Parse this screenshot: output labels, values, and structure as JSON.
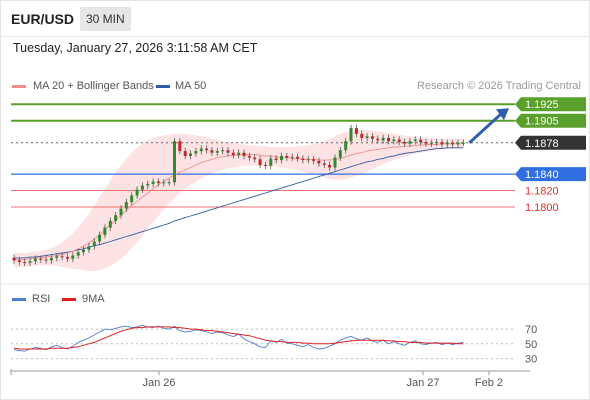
{
  "header": {
    "symbol": "EUR/USD",
    "timeframe": "30 MIN",
    "datetime": "Tuesday, January 27, 2026 3:11:58 AM CET"
  },
  "legend": {
    "items": [
      {
        "label": "MA 20 + Bollinger Bands",
        "color": "#f08c8c"
      },
      {
        "label": "MA 50",
        "color": "#2f5ea8"
      }
    ],
    "credit": "Research © 2026 Trading Central"
  },
  "rsi_legend": {
    "items": [
      {
        "label": "RSI",
        "color": "#4a7fd4"
      },
      {
        "label": "9MA",
        "color": "#e02020"
      }
    ]
  },
  "colors": {
    "green_level": "#5aa02c",
    "blue_level": "#2f6fe0",
    "red_level": "#f07070",
    "current_price": "#333333",
    "candle_up": "#2e8b2e",
    "candle_down": "#c0262c",
    "arrow": "#2f5ea8",
    "band_fill": "#fde3e3"
  },
  "chart_data": [
    {
      "type": "candlestick",
      "title": "EUR/USD",
      "ylim": [
        1.1716,
        1.1935
      ],
      "x_tick_labels": [
        "Jan 26",
        "Jan 27",
        "Feb 2"
      ],
      "levels": [
        {
          "value": 1.1925,
          "label": "1.1925",
          "kind": "resistance"
        },
        {
          "value": 1.1905,
          "label": "1.1905",
          "kind": "resistance"
        },
        {
          "value": 1.1878,
          "label": "1.1878",
          "kind": "current"
        },
        {
          "value": 1.184,
          "label": "1.1840",
          "kind": "pivot"
        },
        {
          "value": 1.182,
          "label": "1.1820",
          "kind": "support"
        },
        {
          "value": 1.18,
          "label": "1.1800",
          "kind": "support"
        }
      ],
      "close": [
        1.1735,
        1.1733,
        1.1732,
        1.1734,
        1.1737,
        1.1736,
        1.1735,
        1.1738,
        1.174,
        1.1739,
        1.1737,
        1.1741,
        1.1745,
        1.1748,
        1.1752,
        1.1758,
        1.1766,
        1.1775,
        1.1783,
        1.179,
        1.1798,
        1.1806,
        1.1814,
        1.1821,
        1.1826,
        1.1828,
        1.1831,
        1.1829,
        1.183,
        1.183,
        1.188,
        1.1868,
        1.1862,
        1.1865,
        1.1868,
        1.1871,
        1.1869,
        1.1866,
        1.1868,
        1.1869,
        1.1866,
        1.1863,
        1.1866,
        1.1862,
        1.186,
        1.1858,
        1.1851,
        1.185,
        1.1859,
        1.1857,
        1.1862,
        1.186,
        1.1861,
        1.1859,
        1.1857,
        1.1858,
        1.1856,
        1.1853,
        1.1851,
        1.1848,
        1.186,
        1.1869,
        1.188,
        1.1896,
        1.1889,
        1.1884,
        1.1886,
        1.1883,
        1.1881,
        1.1884,
        1.188,
        1.1882,
        1.1879,
        1.1877,
        1.188,
        1.1882,
        1.1879,
        1.1877,
        1.1878,
        1.1879,
        1.1876,
        1.1878,
        1.1876,
        1.1878,
        1.1878
      ],
      "ma20": [
        1.1736,
        1.1736,
        1.1736,
        1.1737,
        1.1738,
        1.1738,
        1.1739,
        1.174,
        1.1741,
        1.1742,
        1.1744,
        1.1746,
        1.1749,
        1.1752,
        1.1756,
        1.1761,
        1.1766,
        1.1772,
        1.1778,
        1.1784,
        1.179,
        1.1796,
        1.1802,
        1.1807,
        1.1812,
        1.1817,
        1.1822,
        1.1827,
        1.1831,
        1.1835,
        1.1839,
        1.1842,
        1.1845,
        1.1848,
        1.1851,
        1.1854,
        1.1856,
        1.1858,
        1.186,
        1.1861,
        1.1862,
        1.1863,
        1.1863,
        1.1864,
        1.1864,
        1.1864,
        1.1863,
        1.1862,
        1.1862,
        1.1861,
        1.186,
        1.186,
        1.1859,
        1.1859,
        1.1858,
        1.1858,
        1.1858,
        1.1857,
        1.1857,
        1.1857,
        1.1858,
        1.1859,
        1.1861,
        1.1863,
        1.1865,
        1.1866,
        1.1868,
        1.1869,
        1.187,
        1.1871,
        1.1872,
        1.1873,
        1.1873,
        1.1874,
        1.1874,
        1.1875,
        1.1875,
        1.1876,
        1.1876,
        1.1876,
        1.1877,
        1.1877,
        1.1877,
        1.1877,
        1.1877
      ],
      "bb_upper": [
        1.1745,
        1.1744,
        1.1744,
        1.1745,
        1.1746,
        1.1746,
        1.1748,
        1.175,
        1.1753,
        1.1757,
        1.1762,
        1.1768,
        1.1775,
        1.1783,
        1.1792,
        1.1802,
        1.1812,
        1.1822,
        1.1832,
        1.1842,
        1.1851,
        1.1859,
        1.1866,
        1.1872,
        1.1877,
        1.1881,
        1.1884,
        1.1886,
        1.1887,
        1.1888,
        1.1889,
        1.1889,
        1.1889,
        1.1888,
        1.1887,
        1.1886,
        1.1885,
        1.1883,
        1.1882,
        1.188,
        1.1879,
        1.1878,
        1.1877,
        1.1876,
        1.1875,
        1.1875,
        1.1874,
        1.1874,
        1.1873,
        1.1873,
        1.1873,
        1.1873,
        1.1873,
        1.1874,
        1.1874,
        1.1875,
        1.1876,
        1.1878,
        1.188,
        1.1883,
        1.1886,
        1.1889,
        1.1891,
        1.1893,
        1.1894,
        1.1894,
        1.1894,
        1.1893,
        1.1892,
        1.1891,
        1.189,
        1.1889,
        1.1888,
        1.1887,
        1.1886,
        1.1885,
        1.1885,
        1.1884,
        1.1884,
        1.1883,
        1.1883,
        1.1883,
        1.1883,
        1.1883,
        1.1883
      ],
      "bb_lower": [
        1.1727,
        1.1727,
        1.1727,
        1.1728,
        1.1729,
        1.1729,
        1.1729,
        1.1729,
        1.1728,
        1.1727,
        1.1726,
        1.1725,
        1.1724,
        1.1723,
        1.1722,
        1.1722,
        1.1723,
        1.1725,
        1.1728,
        1.1732,
        1.1737,
        1.1743,
        1.175,
        1.1757,
        1.1765,
        1.1773,
        1.1781,
        1.1789,
        1.1797,
        1.1804,
        1.1811,
        1.1817,
        1.1822,
        1.1827,
        1.1831,
        1.1835,
        1.1838,
        1.1841,
        1.1843,
        1.1845,
        1.1847,
        1.1848,
        1.1849,
        1.185,
        1.185,
        1.185,
        1.185,
        1.185,
        1.185,
        1.1849,
        1.1848,
        1.1847,
        1.1846,
        1.1845,
        1.1843,
        1.1841,
        1.184,
        1.1838,
        1.1836,
        1.1834,
        1.1833,
        1.1833,
        1.1834,
        1.1836,
        1.1838,
        1.184,
        1.1843,
        1.1846,
        1.1849,
        1.1852,
        1.1855,
        1.1857,
        1.1859,
        1.1861,
        1.1863,
        1.1865,
        1.1866,
        1.1867,
        1.1868,
        1.1869,
        1.187,
        1.187,
        1.1871,
        1.1871,
        1.1871
      ],
      "ma50": [
        1.1738,
        1.1738,
        1.1738,
        1.1739,
        1.1739,
        1.174,
        1.1741,
        1.1742,
        1.1743,
        1.1744,
        1.1745,
        1.1746,
        1.1748,
        1.1749,
        1.1751,
        1.1753,
        1.1754,
        1.1756,
        1.1758,
        1.176,
        1.1762,
        1.1764,
        1.1766,
        1.1768,
        1.177,
        1.1772,
        1.1774,
        1.1776,
        1.1778,
        1.178,
        1.1783,
        1.1785,
        1.1787,
        1.1789,
        1.1791,
        1.1793,
        1.1795,
        1.1797,
        1.1799,
        1.1801,
        1.1803,
        1.1805,
        1.1807,
        1.1809,
        1.1811,
        1.1813,
        1.1815,
        1.1817,
        1.1819,
        1.1821,
        1.1823,
        1.1825,
        1.1827,
        1.1829,
        1.1831,
        1.1833,
        1.1835,
        1.1837,
        1.1839,
        1.1841,
        1.1843,
        1.1845,
        1.1847,
        1.1849,
        1.1851,
        1.1853,
        1.1855,
        1.1856,
        1.1858,
        1.1859,
        1.1861,
        1.1862,
        1.1864,
        1.1865,
        1.1866,
        1.1867,
        1.1868,
        1.1869,
        1.187,
        1.1871,
        1.1871,
        1.1872,
        1.1872,
        1.1872,
        1.1872
      ]
    },
    {
      "type": "line",
      "title": "RSI",
      "ylim": [
        20,
        85
      ],
      "y_tick_labels": [
        "70",
        "50",
        "30"
      ],
      "y_ticks": [
        70,
        50,
        30
      ],
      "series": [
        {
          "name": "RSI",
          "values": [
            42,
            41,
            40,
            43,
            45,
            44,
            42,
            46,
            48,
            45,
            43,
            47,
            52,
            55,
            58,
            62,
            66,
            70,
            69,
            71,
            73,
            74,
            72,
            73,
            75,
            73,
            72,
            74,
            71,
            70,
            74,
            68,
            66,
            67,
            69,
            68,
            66,
            64,
            66,
            65,
            62,
            60,
            63,
            57,
            53,
            50,
            46,
            45,
            54,
            52,
            56,
            51,
            50,
            48,
            46,
            49,
            45,
            43,
            44,
            47,
            50,
            55,
            58,
            60,
            57,
            55,
            58,
            54,
            52,
            55,
            50,
            53,
            50,
            48,
            52,
            54,
            50,
            49,
            51,
            52,
            49,
            51,
            49,
            51,
            52
          ]
        },
        {
          "name": "9MA",
          "values": [
            44,
            43,
            43,
            43,
            43,
            43,
            43,
            44,
            44,
            44,
            44,
            45,
            46,
            48,
            50,
            52,
            55,
            58,
            61,
            64,
            67,
            69,
            71,
            72,
            72,
            73,
            73,
            73,
            73,
            73,
            72,
            72,
            71,
            70,
            70,
            69,
            68,
            68,
            67,
            66,
            65,
            64,
            63,
            62,
            61,
            59,
            57,
            55,
            54,
            53,
            53,
            52,
            52,
            52,
            51,
            51,
            50,
            50,
            50,
            50,
            51,
            52,
            53,
            54,
            55,
            55,
            55,
            55,
            55,
            55,
            54,
            54,
            53,
            53,
            52,
            52,
            52,
            51,
            51,
            51,
            51,
            51,
            51,
            50,
            50
          ]
        }
      ]
    }
  ]
}
